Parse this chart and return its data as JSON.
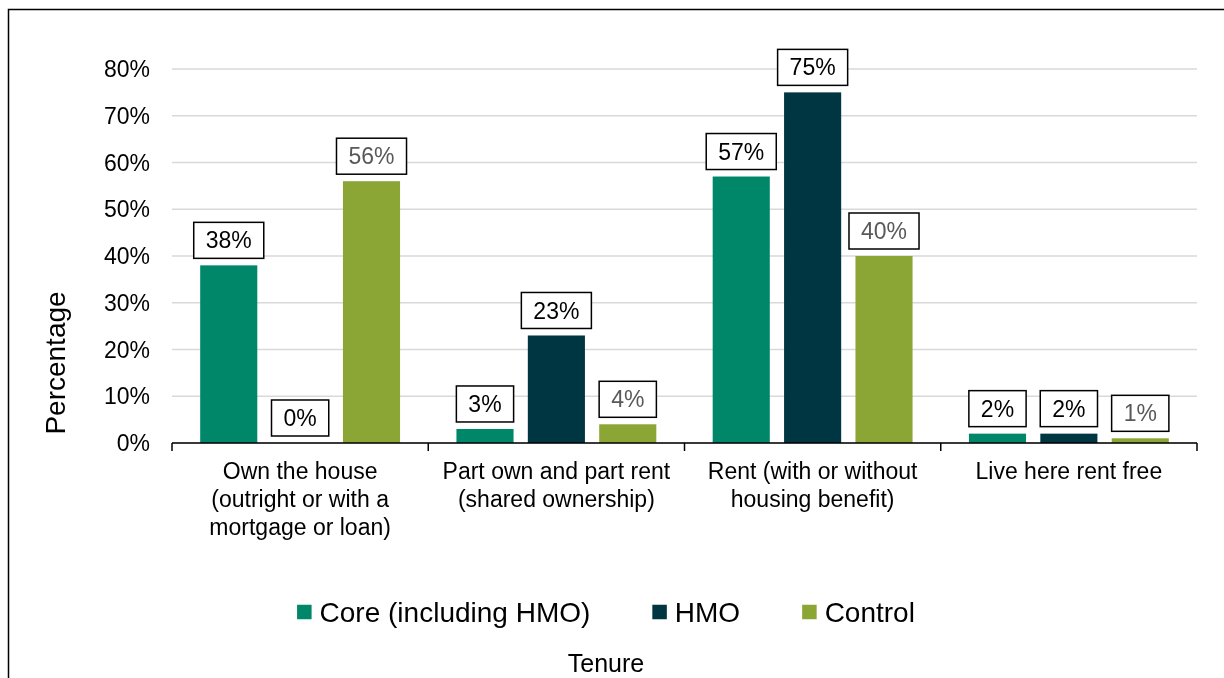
{
  "chart_data": {
    "type": "bar",
    "xlabel": "Tenure",
    "ylabel": "Percentage",
    "categories": [
      "Own the house (outright or with a mortgage or loan)",
      "Part own and part rent (shared ownership)",
      "Rent (with or without housing benefit)",
      "Live here rent free"
    ],
    "series": [
      {
        "name": "Core (including HMO)",
        "color": "#00876a",
        "values": [
          38,
          3,
          57,
          2
        ],
        "value_labels": [
          "38%",
          "3%",
          "57%",
          "2%"
        ]
      },
      {
        "name": "HMO",
        "color": "#003641",
        "values": [
          0,
          23,
          75,
          2
        ],
        "value_labels": [
          "0%",
          "23%",
          "75%",
          "2%"
        ]
      },
      {
        "name": "Control",
        "color": "#8ba634",
        "values": [
          56,
          4,
          40,
          1
        ],
        "value_labels": [
          "56%",
          "4%",
          "40%",
          "1%"
        ]
      }
    ],
    "ylim": [
      0,
      80
    ],
    "yticks": [
      {
        "value": 0,
        "label": "0%"
      },
      {
        "value": 10,
        "label": "10%"
      },
      {
        "value": 20,
        "label": "20%"
      },
      {
        "value": 30,
        "label": "30%"
      },
      {
        "value": 40,
        "label": "40%"
      },
      {
        "value": 50,
        "label": "50%"
      },
      {
        "value": 60,
        "label": "60%"
      },
      {
        "value": 70,
        "label": "70%"
      },
      {
        "value": 80,
        "label": "80%"
      }
    ],
    "grid": "y",
    "legend": "bottom"
  }
}
